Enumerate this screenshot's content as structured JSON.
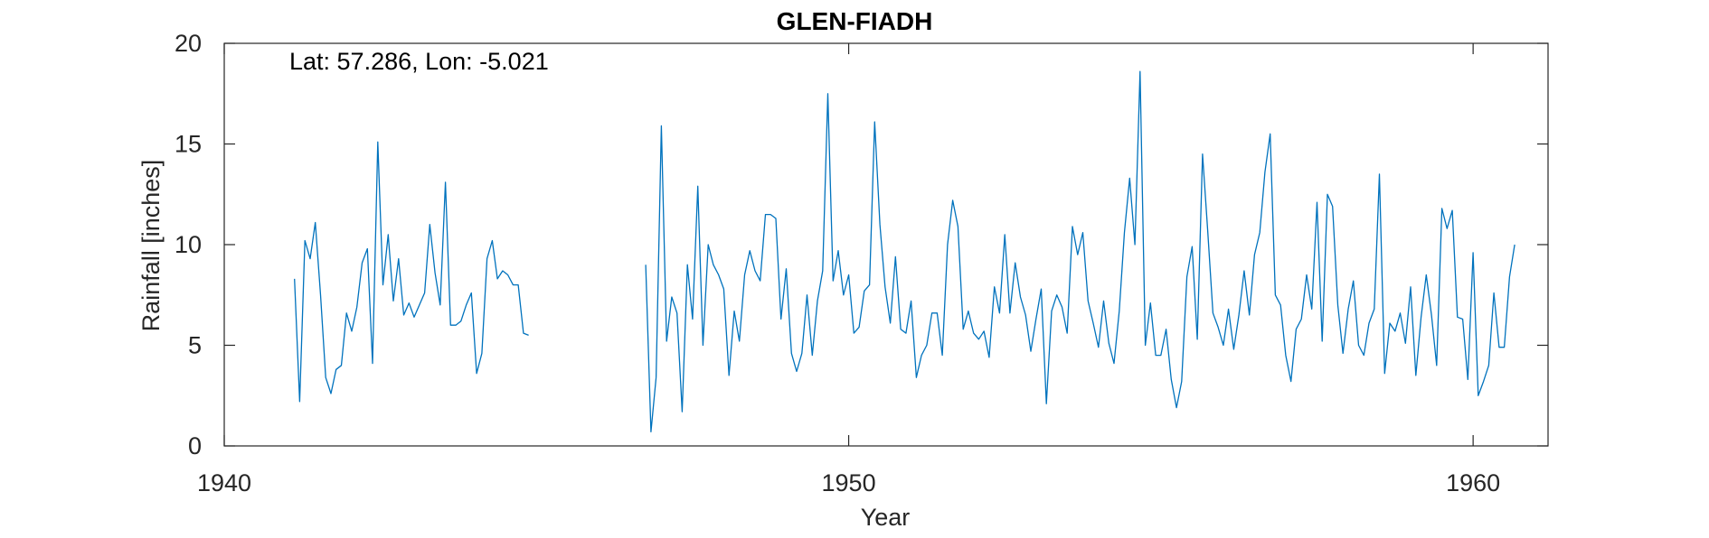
{
  "chart_data": {
    "type": "line",
    "title": "GLEN-FIADH",
    "xlabel": "Year",
    "ylabel": "Rainfall [inches]",
    "annotation": "Lat: 57.286, Lon: -5.021",
    "xlim": [
      1940,
      1961.2
    ],
    "ylim": [
      0,
      20
    ],
    "xticks": [
      1940,
      1950,
      1960
    ],
    "yticks": [
      0,
      5,
      10,
      15,
      20
    ],
    "grid": false,
    "line_color": "#0072BD",
    "series": [
      {
        "segments": [
          {
            "x_start": 1941.125,
            "step": 0.08333,
            "values": [
              8.3,
              2.2,
              10.2,
              9.3,
              11.1,
              7.5,
              3.4,
              2.6,
              3.8,
              4.0,
              6.6,
              5.7,
              6.9,
              9.1,
              9.8,
              4.1,
              15.1,
              8.0,
              10.5,
              7.2,
              9.3,
              6.5,
              7.1,
              6.4,
              7.0,
              7.6,
              11.0,
              8.6,
              7.0,
              13.1,
              6.0,
              6.0,
              6.2,
              7.0,
              7.6,
              3.6,
              4.6,
              9.3,
              10.2,
              8.3,
              8.7,
              8.5,
              8.0,
              8.0,
              5.6,
              5.5
            ]
          },
          {
            "x_start": 1946.75,
            "step": 0.08333,
            "values": [
              9.0,
              0.7,
              3.4,
              15.9,
              5.2,
              7.4,
              6.6,
              1.7,
              9.0,
              6.3,
              12.9,
              5.0,
              10.0,
              9.0,
              8.5,
              7.8,
              3.5,
              6.7,
              5.2,
              8.5,
              9.7,
              8.7,
              8.2,
              11.5,
              11.5,
              11.3,
              6.3,
              8.8,
              4.6,
              3.7,
              4.6,
              7.5,
              4.5,
              7.2,
              8.7,
              17.5,
              8.2,
              9.7,
              7.5,
              8.5,
              5.6,
              5.9,
              7.7,
              8.0,
              16.1,
              11.0,
              7.9,
              6.1,
              9.4,
              5.8,
              5.6,
              7.2,
              3.4,
              4.5,
              5.0,
              6.6,
              6.6,
              4.5,
              10.0,
              12.2,
              10.9,
              5.8,
              6.7,
              5.6,
              5.3,
              5.7,
              4.4,
              7.9,
              6.6,
              10.5,
              6.6,
              9.1,
              7.4,
              6.5,
              4.7,
              6.3,
              7.8,
              2.1,
              6.7,
              7.5,
              6.9,
              5.6,
              10.9,
              9.5,
              10.6,
              7.2,
              6.1,
              4.9,
              7.2,
              5.1,
              4.1,
              6.7,
              10.6,
              13.3,
              10.0,
              18.6,
              5.0,
              7.1,
              4.5,
              4.5,
              5.8,
              3.3,
              1.9,
              3.2,
              8.4,
              9.9,
              5.3,
              14.5,
              10.7,
              6.6,
              5.9,
              5.0,
              6.8,
              4.8,
              6.5,
              8.7,
              6.5,
              9.5,
              10.6,
              13.6,
              15.5,
              7.5,
              7.0,
              4.5,
              3.2,
              5.8,
              6.3,
              8.5,
              6.8,
              12.1,
              5.2,
              12.5,
              11.9,
              7.0,
              4.6,
              6.8,
              8.2,
              5.0,
              4.5,
              6.1,
              6.8,
              13.5,
              3.6,
              6.1,
              5.7,
              6.6,
              5.1,
              7.9,
              3.5,
              6.4,
              8.5,
              6.5,
              4.0,
              11.8,
              10.8,
              11.7,
              6.4,
              6.3,
              3.3,
              9.6,
              2.5,
              3.2,
              4.0,
              7.6,
              4.9,
              4.9,
              8.4,
              10.0
            ]
          }
        ]
      }
    ]
  }
}
